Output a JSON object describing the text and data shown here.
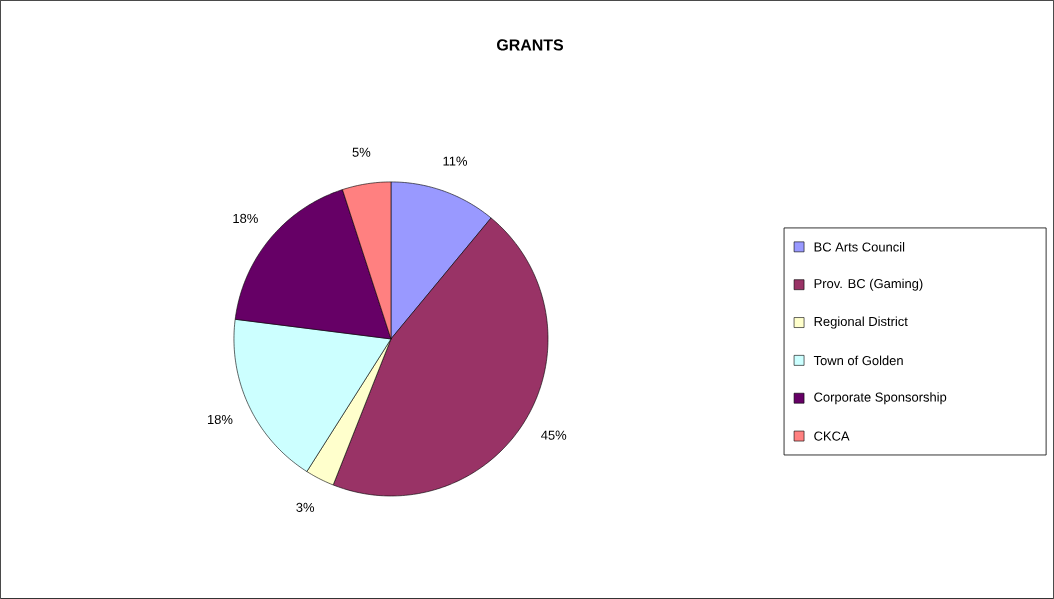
{
  "chart_data": {
    "type": "pie",
    "title": "GRANTS",
    "categories": [
      "BC Arts Council",
      "Prov. BC (Gaming)",
      "Regional District",
      "Town of Golden",
      "Corporate Sponsorship",
      "CKCA"
    ],
    "values": [
      11,
      45,
      3,
      18,
      18,
      5
    ],
    "value_labels": [
      "11%",
      "45%",
      "3%",
      "18%",
      "18%",
      "5%"
    ],
    "colors": [
      "#9999ff",
      "#993366",
      "#ffffcc",
      "#ccffff",
      "#660066",
      "#ff8080"
    ],
    "legend": "right"
  }
}
